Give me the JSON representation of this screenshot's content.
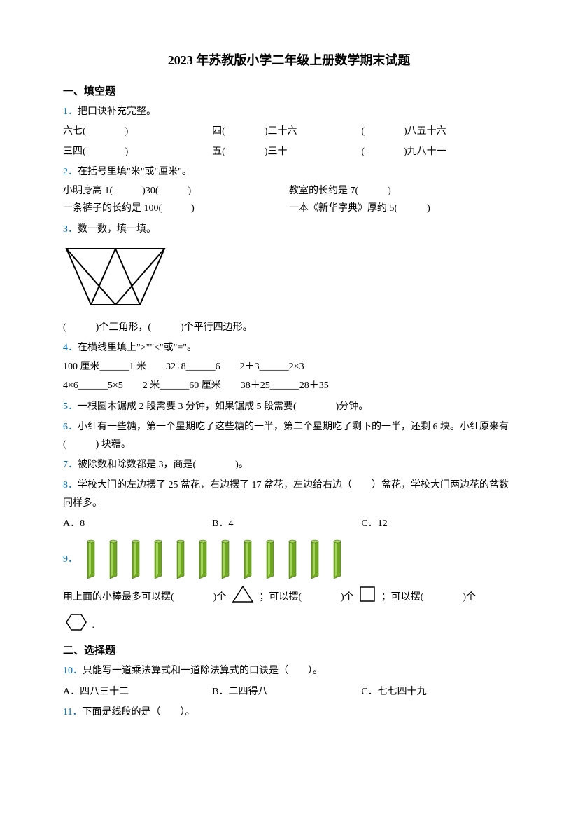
{
  "title": "2023 年苏教版小学二年级上册数学期末试题",
  "section1": {
    "header": "一、填空题",
    "q1": {
      "num": "1．",
      "text": "把口诀补充完整。",
      "row1_a": "六七(　　　　)",
      "row1_b": "四(　　　　)三十六",
      "row1_c": "(　　　　)八五十六",
      "row2_a": "三四(　　　　)",
      "row2_b": "五(　　　　)三十",
      "row2_c": "(　　　　)九八十一"
    },
    "q2": {
      "num": "2．",
      "text": "在括号里填\"米\"或\"厘米\"。",
      "line1_a": "小明身高 1(　　　)30(　　　)",
      "line1_b": "教室的长约是 7(　　　)",
      "line2_a": "一条裤子的长约是 100(　　　)",
      "line2_b": "一本《新华字典》厚约 5(　　　)"
    },
    "q3": {
      "num": "3．",
      "text": "数一数，填一填。",
      "answer": "(　　　)个三角形，(　　　)个平行四边形。"
    },
    "q4": {
      "num": "4．",
      "text": "在横线里填上\">\"\"<\"或\"=\"。",
      "line1": "100 厘米______1 米　　32÷8______6　　2＋3______2×3",
      "line2": "4×6______5×5　　2 米______60 厘米　　38＋25______28＋35"
    },
    "q5": {
      "num": "5．",
      "text": "一根圆木锯成 2 段需要 3 分钟，如果锯成 5 段需要(　　　　)分钟。"
    },
    "q6": {
      "num": "6．",
      "text": "小红有一些糖，第一个星期吃了这些糖的一半，第二个星期吃了剩下的一半，还剩 6 块。小红原来有(　　　) 块糖。"
    },
    "q7": {
      "num": "7．",
      "text": "被除数和除数都是 3，商是(　　　　)。"
    },
    "q8": {
      "num": "8．",
      "text": "学校大门的左边摆了 25 盆花，右边摆了 17 盆花，左边给右边（　　）盆花，学校大门两边花的盆数同样多。",
      "optA": "A．8",
      "optB": "B．4",
      "optC": "C．12"
    },
    "q9": {
      "num": "9．",
      "line1_a": "用上面的小棒最多可以摆(　　　　)个",
      "line1_b": "；可以摆(　　　　)个",
      "line1_c": "；可以摆(　　　　)个",
      "line2_end": "."
    }
  },
  "section2": {
    "header": "二、选择题",
    "q10": {
      "num": "10．",
      "text": "只能写一道乘法算式和一道除法算式的口诀是（　　）。",
      "optA": "A．四八三十二",
      "optB": "B．二四得八",
      "optC": "C．七七四十九"
    },
    "q11": {
      "num": "11．",
      "text": "下面是线段的是（　　）。"
    }
  },
  "diagram_q3": {
    "stroke": "#000000",
    "stroke_width": 2,
    "width": 150,
    "height": 90
  },
  "sticks": {
    "count": 12,
    "fill": "#6fa720",
    "highlight": "#a5d45a",
    "shadow": "#3d6810"
  },
  "shapes": {
    "triangle_stroke": "#000000",
    "square_stroke": "#000000",
    "hexagon_stroke": "#000000"
  }
}
